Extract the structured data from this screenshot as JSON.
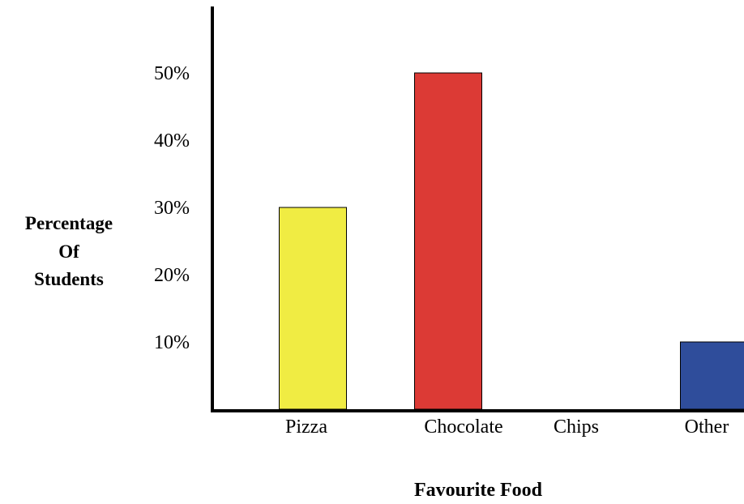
{
  "chart_data": {
    "type": "bar",
    "categories": [
      "Pizza",
      "Chocolate",
      "Chips",
      "Other"
    ],
    "values": [
      30,
      50,
      0,
      10
    ],
    "colors": [
      "#f0ec43",
      "#dc3a35",
      "#ffffff",
      "#2f4d9b"
    ],
    "title": "",
    "xlabel": "Favourite Food",
    "ylabel_lines": [
      "Percentage",
      "Of",
      "Students"
    ],
    "yticks": [
      "10%",
      "20%",
      "30%",
      "40%",
      "50%"
    ],
    "ytick_values": [
      10,
      20,
      30,
      40,
      50
    ],
    "ylim": [
      0,
      60
    ],
    "grid": false
  }
}
